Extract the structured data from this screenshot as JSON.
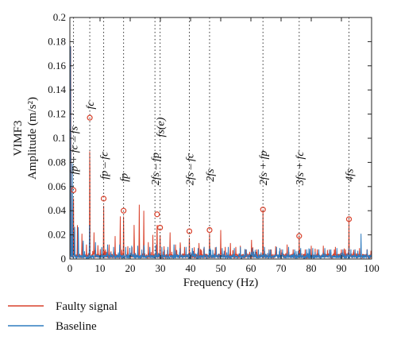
{
  "chart_data": {
    "type": "line",
    "xlabel": "Frequency (Hz)",
    "ylabel_top": "VIMF3",
    "ylabel": "Amplitude (m/s²)",
    "xlim": [
      0,
      100
    ],
    "ylim": [
      0,
      0.2
    ],
    "xticks": [
      "0",
      "10",
      "20",
      "30",
      "40",
      "50",
      "60",
      "70",
      "80",
      "90",
      "100"
    ],
    "yticks": [
      "0",
      "0.02",
      "0.04",
      "0.06",
      "0.08",
      "0.1",
      "0.12",
      "0.14",
      "0.16",
      "0.18",
      "0.2"
    ],
    "grid": false,
    "legend_position": "bottom-left",
    "series": [
      {
        "name": "Faulty signal",
        "color": "#d9412b",
        "peaks": [
          [
            0.3,
            0.2
          ],
          [
            1.2,
            0.057
          ],
          [
            2.5,
            0.028
          ],
          [
            4.0,
            0.021
          ],
          [
            5.5,
            0.012
          ],
          [
            6.6,
            0.117
          ],
          [
            8.0,
            0.022
          ],
          [
            9.3,
            0.013
          ],
          [
            11.2,
            0.05
          ],
          [
            13.0,
            0.012
          ],
          [
            15.0,
            0.019
          ],
          [
            16.7,
            0.04
          ],
          [
            17.8,
            0.04
          ],
          [
            19.2,
            0.012
          ],
          [
            21.3,
            0.032
          ],
          [
            23.0,
            0.045
          ],
          [
            24.5,
            0.04
          ],
          [
            26.0,
            0.014
          ],
          [
            27.5,
            0.02
          ],
          [
            28.9,
            0.037
          ],
          [
            29.9,
            0.026
          ],
          [
            31.2,
            0.012
          ],
          [
            33.2,
            0.025
          ],
          [
            35.0,
            0.012
          ],
          [
            36.6,
            0.018
          ],
          [
            38.0,
            0.01
          ],
          [
            39.6,
            0.023
          ],
          [
            41.2,
            0.011
          ],
          [
            42.8,
            0.015
          ],
          [
            44.5,
            0.01
          ],
          [
            46.3,
            0.024
          ],
          [
            48.2,
            0.011
          ],
          [
            50.0,
            0.024
          ],
          [
            51.5,
            0.01
          ],
          [
            53.2,
            0.015
          ],
          [
            55.0,
            0.01
          ],
          [
            56.5,
            0.011
          ],
          [
            58.2,
            0.009
          ],
          [
            60.2,
            0.018
          ],
          [
            62.0,
            0.008
          ],
          [
            64.0,
            0.041
          ],
          [
            66.0,
            0.008
          ],
          [
            68.2,
            0.012
          ],
          [
            70.0,
            0.008
          ],
          [
            72.0,
            0.012
          ],
          [
            74.0,
            0.008
          ],
          [
            76.0,
            0.019
          ],
          [
            78.0,
            0.008
          ],
          [
            80.0,
            0.011
          ],
          [
            82.0,
            0.008
          ],
          [
            84.0,
            0.011
          ],
          [
            86.0,
            0.008
          ],
          [
            88.0,
            0.01
          ],
          [
            90.0,
            0.008
          ],
          [
            92.5,
            0.033
          ],
          [
            94.5,
            0.008
          ],
          [
            96.0,
            0.009
          ],
          [
            98.5,
            0.008
          ]
        ]
      },
      {
        "name": "Baseline",
        "color": "#2f7bbf",
        "peaks": [
          [
            0.2,
            0.2
          ],
          [
            0.8,
            0.09
          ],
          [
            1.6,
            0.035
          ],
          [
            2.8,
            0.03
          ],
          [
            4.4,
            0.02
          ],
          [
            6.5,
            0.028
          ],
          [
            8.5,
            0.014
          ],
          [
            10.6,
            0.013
          ],
          [
            12.5,
            0.012
          ],
          [
            14.5,
            0.01
          ],
          [
            16.5,
            0.012
          ],
          [
            18.5,
            0.01
          ],
          [
            20.5,
            0.011
          ],
          [
            22.5,
            0.011
          ],
          [
            24.6,
            0.015
          ],
          [
            26.5,
            0.01
          ],
          [
            28.5,
            0.012
          ],
          [
            30.5,
            0.01
          ],
          [
            32.5,
            0.01
          ],
          [
            34.5,
            0.012
          ],
          [
            36.5,
            0.009
          ],
          [
            38.5,
            0.01
          ],
          [
            40.6,
            0.012
          ],
          [
            42.5,
            0.009
          ],
          [
            44.5,
            0.01
          ],
          [
            46.5,
            0.009
          ],
          [
            48.5,
            0.01
          ],
          [
            50.5,
            0.009
          ],
          [
            52.5,
            0.01
          ],
          [
            54.5,
            0.009
          ],
          [
            56.5,
            0.01
          ],
          [
            58.5,
            0.008
          ],
          [
            60.5,
            0.009
          ],
          [
            62.5,
            0.008
          ],
          [
            64.5,
            0.01
          ],
          [
            66.5,
            0.008
          ],
          [
            68.5,
            0.01
          ],
          [
            70.5,
            0.008
          ],
          [
            72.5,
            0.01
          ],
          [
            74.5,
            0.008
          ],
          [
            76.5,
            0.009
          ],
          [
            78.5,
            0.008
          ],
          [
            80.5,
            0.009
          ],
          [
            82.5,
            0.008
          ],
          [
            84.5,
            0.009
          ],
          [
            86.5,
            0.008
          ],
          [
            88.5,
            0.009
          ],
          [
            90.5,
            0.008
          ],
          [
            92.5,
            0.009
          ],
          [
            94.5,
            0.008
          ],
          [
            96.5,
            0.021
          ],
          [
            98.5,
            0.008
          ]
        ]
      }
    ],
    "markers": [
      {
        "x": 1.2,
        "y": 0.057
      },
      {
        "x": 6.6,
        "y": 0.117
      },
      {
        "x": 11.2,
        "y": 0.05
      },
      {
        "x": 17.8,
        "y": 0.04
      },
      {
        "x": 28.9,
        "y": 0.037
      },
      {
        "x": 29.9,
        "y": 0.026
      },
      {
        "x": 39.6,
        "y": 0.023
      },
      {
        "x": 46.3,
        "y": 0.024
      },
      {
        "x": 64.0,
        "y": 0.041
      },
      {
        "x": 76.0,
        "y": 0.019
      },
      {
        "x": 92.5,
        "y": 0.033
      }
    ],
    "annotations": [
      {
        "x": 1.2,
        "text": "fp + fc – fs",
        "label_y": 0.07
      },
      {
        "x": 6.6,
        "text": "fc",
        "label_y": 0.124
      },
      {
        "x": 11.2,
        "text": "fp – fc",
        "label_y": 0.066
      },
      {
        "x": 17.8,
        "text": "fp",
        "label_y": 0.064
      },
      {
        "x": 28.2,
        "text": "2fs – fp",
        "label_y": 0.061
      },
      {
        "x": 29.9,
        "text": "fs(e)",
        "label_y": 0.101
      },
      {
        "x": 39.6,
        "text": "2fs – fc",
        "label_y": 0.061
      },
      {
        "x": 46.3,
        "text": "2fs",
        "label_y": 0.064
      },
      {
        "x": 64.0,
        "text": "2fs + fp",
        "label_y": 0.061
      },
      {
        "x": 76.0,
        "text": "3fs + fc",
        "label_y": 0.061
      },
      {
        "x": 92.5,
        "text": "4fs",
        "label_y": 0.064
      }
    ]
  }
}
